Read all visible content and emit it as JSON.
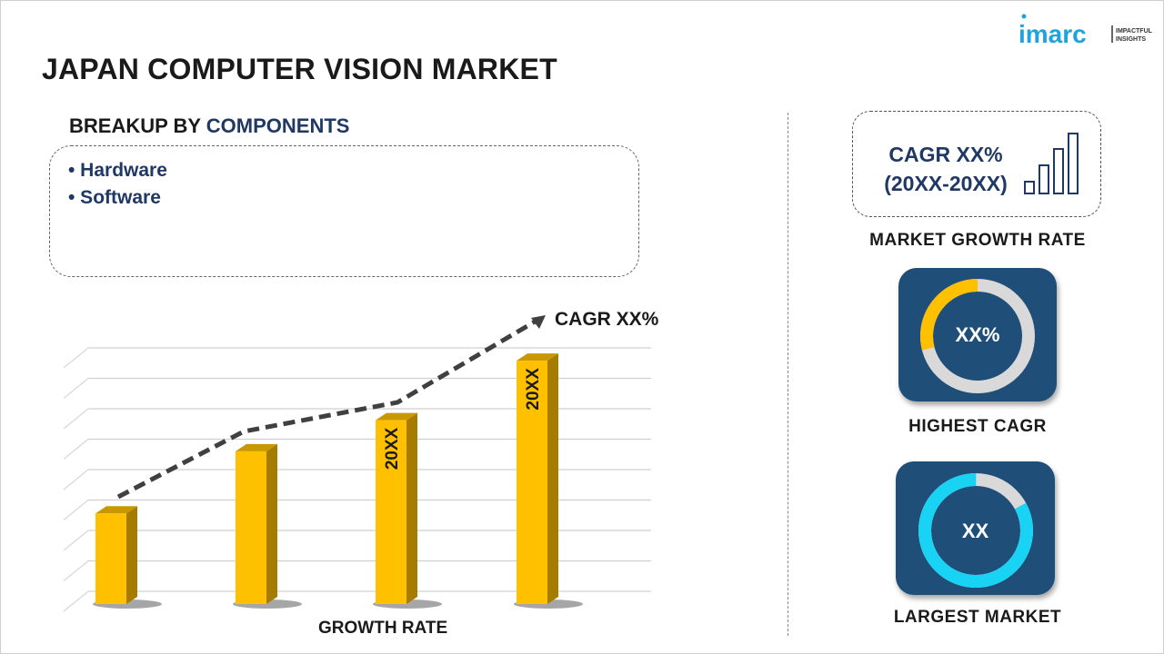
{
  "header": {
    "title": "JAPAN COMPUTER VISION MARKET",
    "logo_text": "imarc",
    "logo_tagline": "IMPACTFUL INSIGHTS"
  },
  "breakup": {
    "prefix": "BREAKUP BY ",
    "highlight": "COMPONENTS",
    "items": [
      "• Hardware",
      "• Software"
    ]
  },
  "growth_chart": {
    "cagr_label": "CAGR XX%",
    "xlabel": "GROWTH RATE",
    "bar_labels": [
      "",
      "",
      "20XX",
      "20XX"
    ],
    "bar_color": "#ffc000",
    "relative_heights": [
      0.35,
      0.59,
      0.71,
      0.94
    ]
  },
  "market_growth": {
    "line1": "CAGR XX%",
    "line2": "(20XX-20XX)",
    "label": "MARKET GROWTH RATE",
    "icon": "bar-chart-icon"
  },
  "highest_cagr": {
    "value": "XX%",
    "label": "HIGHEST CAGR",
    "highlight_fraction": 0.29,
    "highlight_color": "#ffc000"
  },
  "largest_market": {
    "value": "XX",
    "label": "LARGEST MARKET",
    "highlight_fraction": 0.83,
    "highlight_color": "#19d3f5"
  },
  "colors": {
    "navy": "#1f4e79",
    "text_blue": "#203864"
  }
}
